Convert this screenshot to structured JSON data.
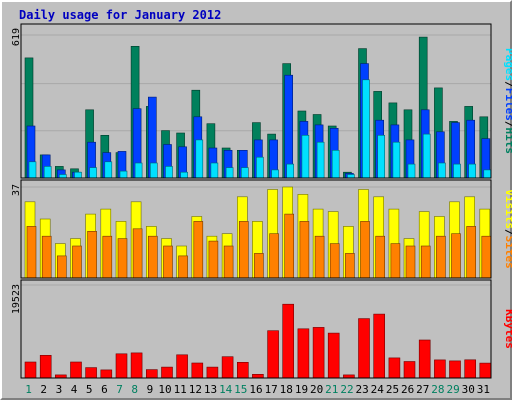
{
  "chart_data": {
    "title": "Daily usage for January 2012",
    "type": "bar",
    "categories": [
      "1",
      "2",
      "3",
      "4",
      "5",
      "6",
      "7",
      "8",
      "9",
      "10",
      "11",
      "12",
      "13",
      "14",
      "15",
      "16",
      "17",
      "18",
      "19",
      "20",
      "21",
      "22",
      "23",
      "24",
      "25",
      "26",
      "27",
      "28",
      "29",
      "30",
      "31"
    ],
    "weekend_days": [
      "1",
      "7",
      "8",
      "14",
      "15",
      "21",
      "22",
      "28",
      "29"
    ],
    "panels": [
      {
        "id": "top",
        "max_label": "619",
        "ylim": [
          0,
          619
        ],
        "legend": [
          {
            "label": "Pages",
            "color": "#00e0ff"
          },
          {
            "label": "Files",
            "color": "#0040ff"
          },
          {
            "label": "Hits",
            "color": "#008060"
          }
        ],
        "series": [
          {
            "name": "Hits",
            "color": "#00805c",
            "values": [
              520,
              100,
              50,
              40,
              295,
              185,
              110,
              570,
              310,
              205,
              195,
              380,
              235,
              130,
              120,
              240,
              190,
              495,
              290,
              275,
              225,
              25,
              560,
              375,
              325,
              295,
              610,
              390,
              245,
              310,
              265
            ]
          },
          {
            "name": "Files",
            "color": "#0040ff",
            "values": [
              225,
              100,
              35,
              25,
              155,
              110,
              115,
              300,
              350,
              145,
              135,
              265,
              130,
              120,
              120,
              165,
              165,
              445,
              245,
              230,
              215,
              20,
              495,
              250,
              230,
              165,
              295,
              200,
              240,
              250,
              170
            ]
          },
          {
            "name": "Pages",
            "color": "#00e0ff",
            "values": [
              70,
              50,
              15,
              25,
              45,
              70,
              30,
              65,
              65,
              50,
              25,
              165,
              65,
              45,
              45,
              90,
              35,
              60,
              185,
              155,
              120,
              15,
              425,
              185,
              155,
              60,
              190,
              65,
              60,
              60,
              35
            ]
          }
        ]
      },
      {
        "id": "middle",
        "max_label": "37",
        "ylim": [
          0,
          37
        ],
        "legend": [
          {
            "label": "Visits",
            "color": "#ffff00"
          },
          {
            "label": "Sites",
            "color": "#ff8000"
          }
        ],
        "series": [
          {
            "name": "Visits",
            "color": "#ffff00",
            "values": [
              31,
              24,
              14,
              16,
              26,
              28,
              23,
              31,
              21,
              16,
              13,
              25,
              17,
              18,
              33,
              23,
              36,
              37,
              34,
              28,
              27,
              21,
              36,
              33,
              28,
              16,
              27,
              25,
              31,
              33,
              28
            ]
          },
          {
            "name": "Sites",
            "color": "#ff8000",
            "values": [
              21,
              17,
              9,
              13,
              19,
              17,
              16,
              20,
              17,
              13,
              9,
              23,
              15,
              13,
              23,
              10,
              18,
              26,
              23,
              17,
              14,
              10,
              23,
              17,
              14,
              13,
              13,
              17,
              18,
              21,
              17
            ]
          }
        ]
      },
      {
        "id": "bottom",
        "max_label": "19523",
        "ylim": [
          0,
          19523
        ],
        "legend": [
          {
            "label": "KBytes",
            "color": "#ff0000"
          }
        ],
        "series": [
          {
            "name": "KBytes",
            "color": "#ff0000",
            "values": [
              3350,
              4770,
              650,
              3350,
              2190,
              1700,
              5070,
              5270,
              1770,
              2290,
              4870,
              3150,
              2290,
              4470,
              3290,
              780,
              9930,
              15500,
              10320,
              10620,
              9420,
              650,
              12460,
              13410,
              4210,
              3470,
              7980,
              3790,
              3600,
              3820,
              3120
            ]
          }
        ]
      }
    ]
  }
}
